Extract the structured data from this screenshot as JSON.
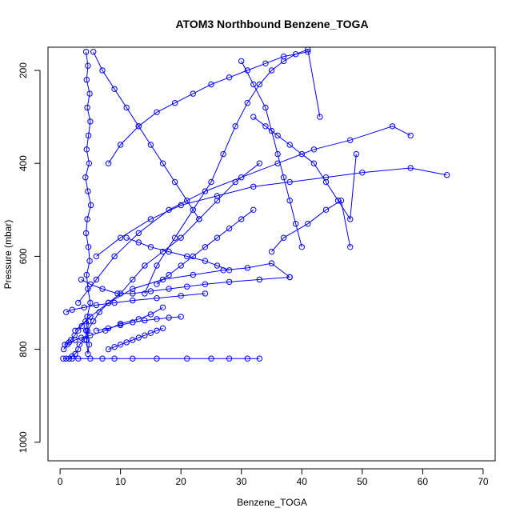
{
  "chart_data": {
    "type": "scatter",
    "title": "ATOM3 Northbound Benzene_TOGA",
    "xlabel": "Benzene_TOGA",
    "ylabel": "Pressure (mbar)",
    "xlim": [
      -2,
      72
    ],
    "ylim": [
      1040,
      150
    ],
    "y_reversed": true,
    "x_ticks": [
      0,
      10,
      20,
      30,
      40,
      50,
      60,
      70
    ],
    "x_tick_labels": [
      "0",
      "10",
      "20",
      "30",
      "40",
      "50",
      "60",
      "70"
    ],
    "y_ticks": [
      200,
      400,
      600,
      800,
      1000
    ],
    "y_tick_labels": [
      "200",
      "400",
      "600",
      "800",
      "1000"
    ],
    "grid": false,
    "series_color": "#0000ff",
    "marker": "open-circle",
    "connected": true,
    "series": [
      {
        "x": [
          4.3,
          4.6,
          4.4,
          4.9,
          4.5,
          5.0,
          4.7,
          4.4,
          4.8,
          4.2,
          4.6,
          5.1,
          4.5,
          4.3,
          4.7,
          4.9,
          4.4,
          4.6,
          5.0,
          4.5,
          4.3,
          4.8,
          4.6,
          4.4,
          4.7
        ],
        "y": [
          160,
          190,
          220,
          250,
          280,
          310,
          340,
          370,
          400,
          430,
          460,
          490,
          520,
          550,
          580,
          610,
          640,
          670,
          700,
          730,
          760,
          790,
          810,
          780,
          740
        ]
      },
      {
        "x": [
          1.5,
          2.0,
          2.5,
          3.0,
          3.2,
          4.0,
          4.5,
          5.5,
          6.5,
          8.0,
          10.0,
          12.0,
          14.0,
          17.0,
          20.0,
          23.0,
          26.0,
          29.0,
          33.0
        ],
        "y": [
          820,
          815,
          810,
          800,
          790,
          780,
          760,
          740,
          720,
          700,
          680,
          650,
          620,
          590,
          560,
          520,
          480,
          440,
          400
        ]
      },
      {
        "x": [
          0.5,
          1.0,
          2.0,
          3.0,
          5.0,
          7.0,
          9.0,
          12.0,
          16.0,
          21.0,
          25.0,
          28.0,
          31.0,
          33.0
        ],
        "y": [
          820,
          820,
          820,
          820,
          820,
          820,
          820,
          820,
          820,
          820,
          820,
          820,
          820,
          820
        ]
      },
      {
        "x": [
          0.8,
          1.5,
          2.5,
          3.5,
          5.0,
          7.5,
          10.0,
          13.0,
          15.0,
          17.0
        ],
        "y": [
          790,
          785,
          780,
          775,
          770,
          760,
          745,
          735,
          725,
          710
        ]
      },
      {
        "x": [
          1.0,
          2.0,
          4.0,
          6.0,
          9.0,
          12.0,
          16.0,
          20.0,
          24.0
        ],
        "y": [
          720,
          715,
          710,
          705,
          700,
          695,
          690,
          685,
          680
        ]
      },
      {
        "x": [
          6.0,
          10.0,
          15.0,
          20.0,
          26.0,
          32.0,
          38.0,
          44.0,
          50.0,
          58.0,
          64.0
        ],
        "y": [
          600,
          560,
          520,
          490,
          470,
          450,
          440,
          430,
          420,
          410,
          425
        ]
      },
      {
        "x": [
          3.0,
          6.0,
          9.0,
          13.0,
          18.0,
          24.0,
          30.0,
          36.0,
          42.0,
          48.0,
          55.0,
          58.0
        ],
        "y": [
          700,
          650,
          600,
          550,
          500,
          460,
          430,
          400,
          370,
          350,
          320,
          340
        ]
      },
      {
        "x": [
          2.5,
          5.0,
          8.0,
          12.0,
          17.0,
          22.0,
          27.0,
          31.0,
          35.0,
          38.0
        ],
        "y": [
          760,
          730,
          700,
          670,
          650,
          640,
          630,
          625,
          615,
          645
        ]
      },
      {
        "x": [
          14.0,
          16.0,
          19.0,
          22.0,
          25.0,
          27.0,
          29.0,
          31.0,
          33.0,
          35.0,
          37.0,
          39.0,
          41.0,
          43.0
        ],
        "y": [
          680,
          620,
          560,
          500,
          440,
          380,
          320,
          270,
          230,
          200,
          180,
          165,
          155,
          300
        ]
      },
      {
        "x": [
          8.0,
          10.0,
          13.0,
          16.0,
          19.0,
          22.0,
          25.0,
          28.0,
          31.0,
          34.0,
          37.0,
          41.0
        ],
        "y": [
          400,
          360,
          320,
          290,
          270,
          250,
          230,
          215,
          200,
          185,
          170,
          160
        ]
      },
      {
        "x": [
          5.5,
          7.0,
          9.0,
          11.0,
          13.0,
          15.0,
          17.0,
          19.0,
          21.0,
          23.0
        ],
        "y": [
          160,
          200,
          240,
          280,
          320,
          360,
          400,
          440,
          480,
          520
        ]
      },
      {
        "x": [
          30.0,
          32.0,
          34.0,
          35.0,
          36.0,
          37.0,
          38.0,
          39.0,
          40.0
        ],
        "y": [
          180,
          230,
          280,
          330,
          380,
          430,
          480,
          530,
          580
        ]
      },
      {
        "x": [
          32.0,
          34.0,
          36.0,
          38.0,
          40.0,
          42.0,
          44.0,
          46.0,
          48.0,
          49.0
        ],
        "y": [
          300,
          320,
          340,
          360,
          380,
          400,
          440,
          480,
          520,
          380
        ]
      },
      {
        "x": [
          11.0,
          13.0,
          15.0,
          18.0,
          21.0,
          24.0,
          26.0,
          28.0
        ],
        "y": [
          560,
          570,
          580,
          590,
          600,
          610,
          620,
          630
        ]
      },
      {
        "x": [
          35.0,
          37.0,
          41.0,
          44.0,
          46.5,
          48.0
        ],
        "y": [
          590,
          560,
          530,
          500,
          480,
          580
        ]
      },
      {
        "x": [
          6.0,
          8.0,
          10.0,
          12.0,
          14.0,
          16.0,
          18.0,
          20.0
        ],
        "y": [
          760,
          755,
          748,
          742,
          738,
          735,
          732,
          730
        ]
      },
      {
        "x": [
          0.6,
          1.2,
          1.8,
          2.4,
          3.0,
          3.6,
          4.2
        ],
        "y": [
          800,
          790,
          780,
          770,
          760,
          750,
          740
        ]
      },
      {
        "x": [
          16.0,
          18.0,
          20.0,
          22.0,
          24.0,
          26.0,
          28.0,
          30.0,
          32.0
        ],
        "y": [
          660,
          640,
          620,
          600,
          580,
          560,
          540,
          520,
          500
        ]
      },
      {
        "x": [
          3.5,
          5.0,
          7.0,
          9.5,
          12.0,
          15.0,
          18.0,
          21.0,
          24.0,
          28.0,
          33.0,
          38.0
        ],
        "y": [
          650,
          660,
          670,
          680,
          680,
          675,
          670,
          665,
          660,
          655,
          650,
          645
        ]
      },
      {
        "x": [
          8.0,
          9.0,
          10.0,
          11.0,
          12.0,
          13.0,
          14.0,
          15.0,
          16.0,
          17.0
        ],
        "y": [
          800,
          795,
          790,
          785,
          780,
          775,
          770,
          765,
          760,
          755
        ]
      }
    ]
  }
}
